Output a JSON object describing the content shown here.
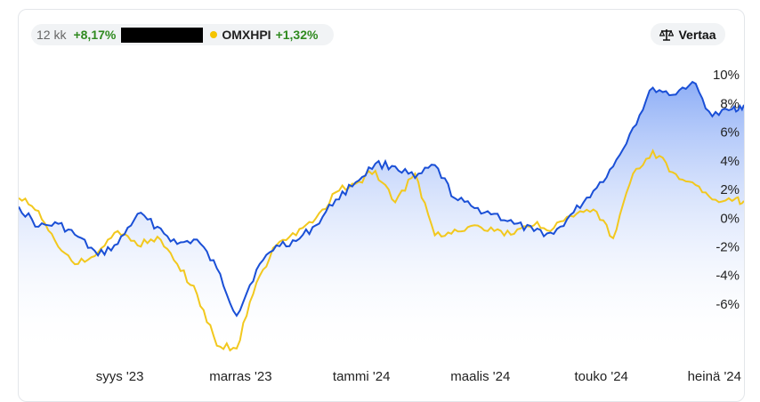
{
  "legend": {
    "period": "12 kk",
    "series_a_change": "+8,17%",
    "series_b_name": "OMXHPI",
    "series_b_change": "+1,32%"
  },
  "compare_button": {
    "label": "Vertaa",
    "icon": "scale-icon"
  },
  "colors": {
    "series_a": "#1a4fd6",
    "series_b": "#f2c81e",
    "positive": "#2f8a1f"
  },
  "chart_data": {
    "type": "line",
    "y_tick_labels": [
      "10%",
      "8%",
      "6%",
      "4%",
      "2%",
      "0%",
      "-2%",
      "-4%",
      "-6%"
    ],
    "y_tick_values": [
      10,
      8,
      6,
      4,
      2,
      0,
      -2,
      -4,
      -6
    ],
    "ylim": [
      -9.6,
      10.5
    ],
    "x_tick_labels": [
      "syys '23",
      "marras '23",
      "tammi '24",
      "maalis '24",
      "touko '24",
      "heinä '24"
    ],
    "x_tick_values": [
      "2023-09-01",
      "2023-11-01",
      "2024-01-01",
      "2024-03-01",
      "2024-05-01",
      "2024-07-01"
    ],
    "xlim": [
      "2023-07-12",
      "2024-07-12"
    ],
    "series": [
      {
        "x": [
          "2023-07-12",
          "2023-07-22",
          "2023-08-01",
          "2023-08-11",
          "2023-08-21",
          "2023-08-31",
          "2023-09-10",
          "2023-09-20",
          "2023-09-30",
          "2023-10-10",
          "2023-10-20",
          "2023-10-30",
          "2023-11-09",
          "2023-11-19",
          "2023-11-29",
          "2023-12-09",
          "2023-12-19",
          "2023-12-29",
          "2024-01-08",
          "2024-01-18",
          "2024-01-28",
          "2024-02-07",
          "2024-02-17",
          "2024-02-27",
          "2024-03-08",
          "2024-03-18",
          "2024-03-28",
          "2024-04-07",
          "2024-04-17",
          "2024-04-27",
          "2024-05-07",
          "2024-05-17",
          "2024-05-27",
          "2024-06-06",
          "2024-06-16",
          "2024-06-26",
          "2024-07-06",
          "2024-07-12"
        ],
        "values": [
          0.8,
          -0.6,
          -0.4,
          -1.3,
          -2.6,
          -1.8,
          0.3,
          -0.6,
          -1.8,
          -1.5,
          -3.5,
          -6.8,
          -3.6,
          -1.9,
          -1.6,
          -0.5,
          1.3,
          2.5,
          3.8,
          3.6,
          2.8,
          3.7,
          1.4,
          0.7,
          0.3,
          -0.4,
          -0.9,
          -1.1,
          0.4,
          1.9,
          3.6,
          6.3,
          9.1,
          8.6,
          9.5,
          7.1,
          7.6,
          7.9
        ]
      },
      {
        "x": [
          "2023-07-12",
          "2023-07-22",
          "2023-08-01",
          "2023-08-11",
          "2023-08-21",
          "2023-08-31",
          "2023-09-10",
          "2023-09-20",
          "2023-09-30",
          "2023-10-10",
          "2023-10-20",
          "2023-10-30",
          "2023-11-09",
          "2023-11-19",
          "2023-11-29",
          "2023-12-09",
          "2023-12-19",
          "2023-12-29",
          "2024-01-08",
          "2024-01-18",
          "2024-01-28",
          "2024-02-07",
          "2024-02-17",
          "2024-02-27",
          "2024-03-08",
          "2024-03-18",
          "2024-03-28",
          "2024-04-07",
          "2024-04-17",
          "2024-04-27",
          "2024-05-07",
          "2024-05-17",
          "2024-05-27",
          "2024-06-06",
          "2024-06-16",
          "2024-06-26",
          "2024-07-06",
          "2024-07-12"
        ],
        "values": [
          1.4,
          0.5,
          -2.0,
          -3.2,
          -2.4,
          -0.9,
          -1.9,
          -1.3,
          -3.2,
          -5.3,
          -8.9,
          -9.1,
          -4.5,
          -1.9,
          -1.2,
          0.0,
          1.8,
          2.4,
          3.3,
          1.1,
          3.1,
          -1.2,
          -0.8,
          -0.5,
          -0.9,
          -1.1,
          -0.5,
          -0.7,
          0.1,
          0.6,
          -1.4,
          3.1,
          4.7,
          3.2,
          2.5,
          1.3,
          1.2,
          1.2
        ]
      }
    ]
  }
}
